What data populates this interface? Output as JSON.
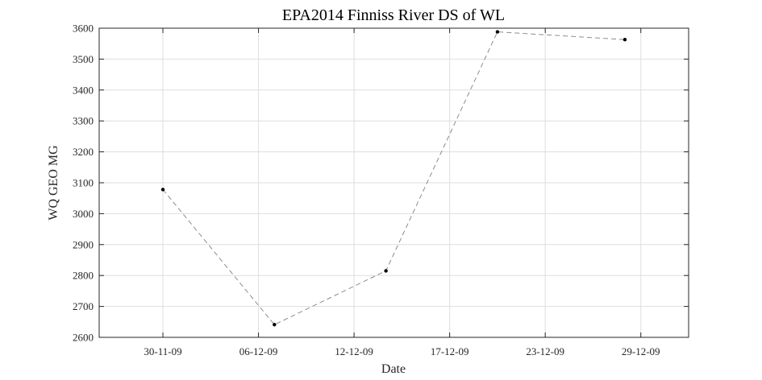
{
  "chart_data": {
    "type": "line",
    "title": "EPA2014 Finniss River DS of WL",
    "xlabel": "Date",
    "ylabel": "WQ GEO MG",
    "x_tick_labels": [
      "30-11-09",
      "06-12-09",
      "12-12-09",
      "17-12-09",
      "23-12-09",
      "29-12-09"
    ],
    "y_ticks": [
      2600,
      2700,
      2800,
      2900,
      3000,
      3100,
      3200,
      3300,
      3400,
      3500,
      3600
    ],
    "ylim": [
      2600,
      3600
    ],
    "grid": true,
    "series": [
      {
        "points": [
          {
            "x": "2009-11-30",
            "y": 3078
          },
          {
            "x": "2009-12-07",
            "y": 2641
          },
          {
            "x": "2009-12-14",
            "y": 2815
          },
          {
            "x": "2009-12-21",
            "y": 3588
          },
          {
            "x": "2009-12-29",
            "y": 3563
          }
        ],
        "line_style": "dashed",
        "line_color": "#8c8c8c",
        "marker_color": "#000000"
      }
    ]
  }
}
